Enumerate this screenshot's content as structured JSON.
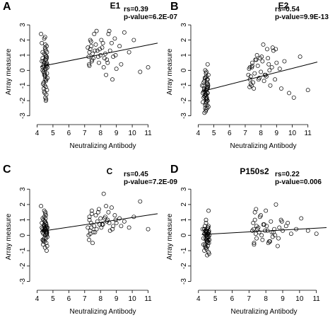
{
  "chart_data": [
    {
      "type": "scatter",
      "panel_letter": "A",
      "title": "E1",
      "stats": [
        "rs=0.39",
        "p-value=6.2E-07"
      ],
      "xlabel": "Neutralizing Antibody",
      "ylabel": "Array measure",
      "xlim": [
        3.8,
        11.6
      ],
      "ylim": [
        -3.3,
        3.1
      ],
      "xticks": [
        "4",
        "5",
        "6",
        "7",
        "8",
        "9",
        "10",
        "11"
      ],
      "yticks": [
        "-3",
        "-2",
        "-1",
        "0",
        "1",
        "2",
        "3"
      ],
      "grid": false,
      "trend": {
        "x": [
          4.2,
          11.6
        ],
        "y": [
          0.25,
          1.8
        ]
      },
      "series": [
        {
          "x": [
            4.25,
            4.3,
            4.35,
            4.3,
            4.4,
            4.35,
            4.45,
            4.5,
            4.38,
            4.42,
            4.48,
            4.52,
            4.55,
            4.58,
            4.62,
            4.6,
            4.5,
            4.45,
            4.55,
            4.4,
            4.35,
            4.6,
            4.65,
            4.5,
            4.55,
            4.45,
            4.52,
            4.58,
            4.48,
            4.62,
            4.4,
            4.55,
            4.5,
            4.6,
            4.65,
            4.45,
            4.5,
            4.55,
            4.35,
            4.42,
            4.57,
            4.63,
            4.47,
            4.53,
            4.6,
            4.5,
            4.55,
            4.45,
            4.6,
            4.52,
            4.58,
            4.4,
            4.48,
            4.56,
            4.62,
            4.5,
            7.2,
            7.3,
            7.25,
            7.4,
            7.45,
            7.35,
            7.5,
            7.3,
            7.6,
            7.7,
            7.55,
            7.8,
            7.9,
            7.75,
            8.0,
            8.1,
            8.2,
            8.05,
            8.3,
            8.4,
            8.5,
            8.6,
            8.45,
            8.7,
            8.8,
            8.9,
            9.0,
            8.75,
            9.2,
            9.3,
            9.5,
            9.8,
            10.1,
            10.5,
            11.0,
            7.35,
            7.45,
            8.15,
            8.35,
            7.65,
            7.85,
            8.55,
            8.95,
            7.28,
            7.42,
            8.25,
            7.95
          ],
          "y": [
            2.4,
            1.8,
            1.2,
            0.6,
            0.3,
            0.0,
            -0.3,
            -0.6,
            -0.9,
            -1.2,
            -1.5,
            -1.8,
            -2.0,
            -1.6,
            -1.3,
            0.9,
            1.5,
            2.1,
            0.4,
            -0.1,
            0.8,
            0.5,
            0.2,
            -0.4,
            -0.7,
            1.1,
            1.7,
            0.1,
            -1.0,
            -0.2,
            0.6,
            1.3,
            0.7,
            0.3,
            -0.5,
            -1.4,
            2.2,
            0.9,
            0.2,
            -0.8,
            -1.9,
            0.4,
            0.0,
            1.0,
            1.6,
            -0.3,
            -1.1,
            0.5,
            0.8,
            1.4,
            -0.6,
            0.3,
            -0.2,
            0.7,
            1.2,
            0.1,
            1.5,
            1.2,
            0.9,
            1.9,
            0.6,
            1.4,
            1.1,
            0.3,
            2.4,
            1.7,
            0.8,
            1.3,
            0.5,
            2.6,
            1.0,
            1.5,
            0.2,
            2.0,
            1.1,
            0.7,
            2.4,
            1.3,
            0.5,
            1.8,
            0.9,
            2.1,
            0.1,
            -0.6,
            1.6,
            0.4,
            2.5,
            1.2,
            2.0,
            -0.1,
            0.2,
            2.0,
            0.7,
            1.8,
            -0.3,
            1.3,
            0.9,
            2.6,
            1.0,
            0.4,
            1.6,
            0.8,
            1.4
          ]
        }
      ]
    },
    {
      "type": "scatter",
      "panel_letter": "B",
      "title": "E2",
      "stats": [
        "rs=0.54",
        "p-value=9.9E-13"
      ],
      "xlabel": "Neutralizing Antibody",
      "ylabel": "Array measure",
      "xlim": [
        3.8,
        11.6
      ],
      "ylim": [
        -3.3,
        3.1
      ],
      "xticks": [
        "4",
        "5",
        "6",
        "7",
        "8",
        "9",
        "10",
        "11"
      ],
      "yticks": [
        "-3",
        "-2",
        "-1",
        "0",
        "1",
        "2",
        "3"
      ],
      "grid": false,
      "trend": {
        "x": [
          4.2,
          11.6
        ],
        "y": [
          -1.4,
          0.55
        ]
      },
      "series": [
        {
          "x": [
            4.25,
            4.3,
            4.35,
            4.3,
            4.4,
            4.35,
            4.45,
            4.5,
            4.38,
            4.42,
            4.48,
            4.52,
            4.55,
            4.58,
            4.62,
            4.6,
            4.5,
            4.45,
            4.55,
            4.4,
            4.35,
            4.6,
            4.65,
            4.5,
            4.55,
            4.45,
            4.52,
            4.58,
            4.48,
            4.62,
            4.4,
            4.55,
            4.5,
            4.6,
            4.65,
            4.45,
            4.5,
            4.55,
            4.35,
            4.42,
            4.57,
            4.63,
            4.47,
            4.53,
            4.6,
            4.5,
            4.55,
            4.45,
            4.6,
            4.52,
            4.58,
            4.4,
            4.48,
            4.56,
            4.62,
            4.5,
            7.2,
            7.3,
            7.25,
            7.4,
            7.45,
            7.35,
            7.5,
            7.3,
            7.6,
            7.7,
            7.55,
            7.8,
            7.9,
            7.75,
            8.0,
            8.1,
            8.2,
            8.05,
            8.3,
            8.4,
            8.5,
            8.6,
            8.45,
            8.7,
            8.8,
            8.9,
            9.0,
            8.75,
            9.2,
            9.3,
            9.5,
            9.8,
            10.1,
            10.5,
            11.0,
            7.35,
            7.45,
            8.15,
            8.35,
            7.65,
            7.85,
            8.55,
            8.95,
            7.28,
            7.42,
            8.25,
            7.95
          ],
          "y": [
            -1.0,
            -1.5,
            -1.8,
            -2.1,
            -1.3,
            -0.8,
            -2.5,
            -1.9,
            -1.2,
            -0.5,
            -2.7,
            -1.6,
            -1.1,
            -2.3,
            -0.9,
            0.4,
            -0.2,
            -1.4,
            -2.0,
            -1.7,
            -1.0,
            -0.6,
            -2.4,
            -1.3,
            -1.8,
            0.0,
            -0.4,
            -1.5,
            -2.2,
            -1.1,
            -0.7,
            -1.9,
            -2.6,
            -1.2,
            -0.3,
            -1.6,
            -2.1,
            -0.8,
            -1.4,
            -1.7,
            -2.5,
            -1.0,
            -0.5,
            -1.3,
            -2.0,
            -1.8,
            -0.9,
            -2.3,
            -1.5,
            -0.1,
            -1.2,
            -2.8,
            -1.6,
            -0.6,
            -1.1,
            -1.9,
            -0.3,
            -0.6,
            0.1,
            -1.0,
            0.5,
            -0.4,
            -0.8,
            0.2,
            -0.2,
            0.7,
            -1.2,
            0.3,
            -0.5,
            1.0,
            -0.1,
            0.6,
            -0.7,
            0.9,
            -0.3,
            1.4,
            0.4,
            -1.0,
            0.8,
            0.2,
            1.3,
            -0.6,
            0.5,
            1.5,
            0.1,
            -1.2,
            0.6,
            -1.5,
            -1.8,
            0.9,
            -1.3,
            -0.9,
            0.3,
            1.7,
            -0.4,
            0.7,
            -0.6,
            0.0,
            1.4,
            -1.1,
            0.2,
            -0.3,
            0.8
          ]
        }
      ]
    },
    {
      "type": "scatter",
      "panel_letter": "C",
      "title": "C",
      "stats": [
        "rs=0.45",
        "p-value=7.2E-09"
      ],
      "xlabel": "Neutralizing Antibody",
      "ylabel": "Array measure",
      "xlim": [
        3.8,
        11.6
      ],
      "ylim": [
        -3.3,
        3.1
      ],
      "xticks": [
        "4",
        "5",
        "6",
        "7",
        "8",
        "9",
        "10",
        "11"
      ],
      "yticks": [
        "-3",
        "-2",
        "-1",
        "0",
        "1",
        "2",
        "3"
      ],
      "grid": false,
      "trend": {
        "x": [
          4.2,
          11.6
        ],
        "y": [
          0.25,
          1.4
        ]
      },
      "series": [
        {
          "x": [
            4.25,
            4.3,
            4.35,
            4.3,
            4.4,
            4.35,
            4.45,
            4.5,
            4.38,
            4.42,
            4.48,
            4.52,
            4.55,
            4.58,
            4.62,
            4.6,
            4.5,
            4.45,
            4.55,
            4.4,
            4.35,
            4.6,
            4.65,
            4.5,
            4.55,
            4.45,
            4.52,
            4.58,
            4.48,
            4.62,
            4.4,
            4.55,
            4.5,
            4.6,
            4.65,
            4.45,
            4.5,
            4.55,
            4.35,
            4.42,
            4.57,
            4.63,
            4.47,
            4.53,
            4.6,
            4.5,
            4.55,
            4.45,
            4.6,
            4.52,
            4.58,
            4.4,
            4.48,
            4.56,
            4.62,
            4.5,
            7.2,
            7.3,
            7.25,
            7.4,
            7.45,
            7.35,
            7.5,
            7.3,
            7.6,
            7.7,
            7.55,
            7.8,
            7.9,
            7.75,
            8.0,
            8.1,
            8.2,
            8.05,
            8.3,
            8.4,
            8.5,
            8.6,
            8.45,
            8.7,
            8.8,
            8.9,
            9.0,
            8.75,
            9.2,
            9.3,
            9.5,
            9.8,
            10.1,
            10.5,
            11.0,
            7.35,
            7.45,
            8.15,
            8.35,
            7.65,
            7.85,
            8.55,
            8.95,
            7.28,
            7.42,
            8.25,
            7.95
          ],
          "y": [
            1.9,
            0.5,
            0.2,
            0.8,
            -0.3,
            0.4,
            1.2,
            0.0,
            -0.6,
            0.3,
            0.9,
            1.5,
            -0.2,
            0.6,
            0.1,
            -1.0,
            0.4,
            0.7,
            0.2,
            -0.4,
            1.1,
            0.5,
            -0.1,
            0.3,
            0.8,
            1.6,
            0.0,
            -0.5,
            0.6,
            0.2,
            1.0,
            0.4,
            -0.8,
            0.1,
            0.5,
            0.3,
            0.9,
            1.3,
            -0.3,
            0.6,
            0.2,
            -0.7,
            0.4,
            1.1,
            0.0,
            0.5,
            0.8,
            -0.2,
            0.3,
            1.4,
            0.7,
            0.1,
            -0.4,
            0.6,
            0.2,
            0.9,
            0.5,
            1.2,
            0.0,
            0.8,
            1.6,
            0.3,
            -0.5,
            1.0,
            0.6,
            1.3,
            0.2,
            0.9,
            1.7,
            0.4,
            1.1,
            0.7,
            2.7,
            0.5,
            1.2,
            0.9,
            1.5,
            0.3,
            1.0,
            1.8,
            0.6,
            1.3,
            0.8,
            0.4,
            1.1,
            0.6,
            0.9,
            0.5,
            1.2,
            2.2,
            0.4,
            0.1,
            1.4,
            0.7,
            1.9,
            0.2,
            1.5,
            0.8,
            1.0,
            -0.3,
            0.5,
            1.1,
            0.7
          ]
        }
      ]
    },
    {
      "type": "scatter",
      "panel_letter": "D",
      "title": "P150s2",
      "stats": [
        "rs=0.22",
        "p-value=0.006"
      ],
      "xlabel": "Neutralizing Antibody",
      "ylabel": "Array measure",
      "xlim": [
        3.8,
        11.6
      ],
      "ylim": [
        -3.3,
        3.1
      ],
      "xticks": [
        "4",
        "5",
        "6",
        "7",
        "8",
        "9",
        "10",
        "11"
      ],
      "yticks": [
        "-3",
        "-2",
        "-1",
        "0",
        "1",
        "2",
        "3"
      ],
      "grid": false,
      "trend": {
        "x": [
          4.2,
          11.6
        ],
        "y": [
          0.05,
          0.5
        ]
      },
      "series": [
        {
          "x": [
            4.25,
            4.3,
            4.35,
            4.3,
            4.4,
            4.35,
            4.45,
            4.5,
            4.38,
            4.42,
            4.48,
            4.52,
            4.55,
            4.58,
            4.62,
            4.6,
            4.5,
            4.45,
            4.55,
            4.4,
            4.35,
            4.6,
            4.65,
            4.5,
            4.55,
            4.45,
            4.52,
            4.58,
            4.48,
            4.62,
            4.4,
            4.55,
            4.5,
            4.6,
            4.65,
            4.45,
            4.5,
            4.55,
            4.35,
            4.42,
            4.57,
            4.63,
            4.47,
            4.53,
            4.6,
            4.5,
            4.55,
            4.45,
            4.6,
            4.52,
            4.58,
            4.4,
            4.48,
            4.56,
            4.62,
            4.5,
            7.2,
            7.3,
            7.25,
            7.4,
            7.45,
            7.35,
            7.5,
            7.3,
            7.6,
            7.7,
            7.55,
            7.8,
            7.9,
            7.75,
            8.0,
            8.1,
            8.2,
            8.05,
            8.3,
            8.4,
            8.5,
            8.6,
            8.45,
            8.7,
            8.8,
            8.9,
            9.0,
            8.75,
            9.2,
            9.3,
            9.5,
            9.8,
            10.1,
            10.5,
            11.0,
            7.35,
            7.45,
            8.15,
            8.35,
            7.65,
            7.85,
            8.55,
            8.95,
            7.28,
            7.42,
            8.25,
            7.95
          ],
          "y": [
            0.4,
            -0.2,
            0.1,
            -0.6,
            0.3,
            -1.0,
            0.0,
            -0.4,
            0.6,
            -0.8,
            0.2,
            -1.3,
            -0.1,
            0.5,
            -0.5,
            1.6,
            0.3,
            -0.3,
            0.1,
            -0.7,
            0.4,
            -1.1,
            0.0,
            0.2,
            -0.4,
            0.8,
            -0.2,
            0.1,
            -0.9,
            0.3,
            -0.6,
            0.5,
            -0.1,
            0.2,
            -0.3,
            1.0,
            0.0,
            -0.5,
            0.4,
            -0.2,
            0.1,
            -1.2,
            0.3,
            -0.4,
            0.6,
            0.0,
            -0.7,
            0.2,
            -0.1,
            0.4,
            -0.3,
            0.1,
            -0.8,
            0.5,
            0.2,
            -0.2,
            0.3,
            -0.5,
            0.8,
            0.1,
            -0.2,
            1.0,
            0.4,
            -0.6,
            0.2,
            1.3,
            0.5,
            -0.3,
            0.7,
            0.0,
            1.6,
            0.3,
            -0.4,
            0.6,
            0.9,
            -0.1,
            0.4,
            2.0,
            0.2,
            -0.7,
            0.5,
            1.0,
            0.3,
            -0.2,
            0.6,
            0.8,
            0.1,
            0.4,
            1.1,
            0.3,
            0.1,
            1.5,
            0.6,
            -0.5,
            0.2,
            1.2,
            0.7,
            0.0,
            0.9,
            0.4,
            1.7,
            -0.4,
            0.3
          ]
        }
      ]
    }
  ]
}
